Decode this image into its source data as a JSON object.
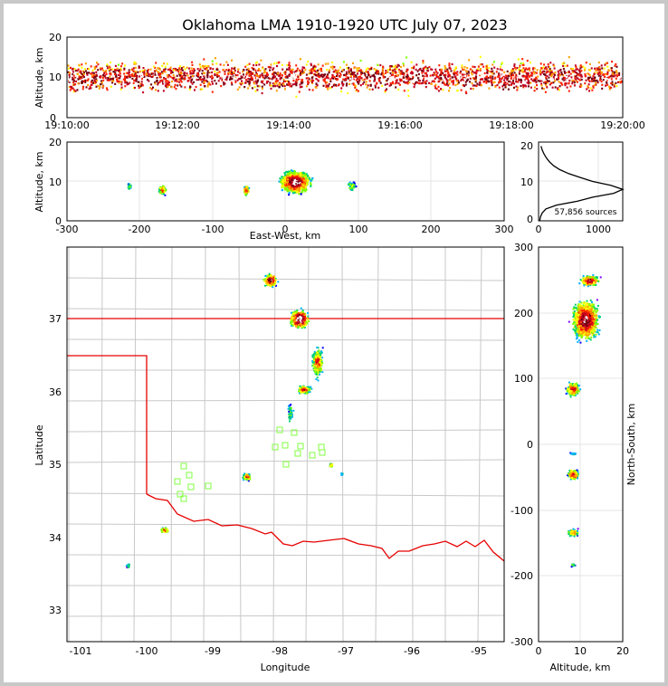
{
  "colors": {
    "state_border": "#e60000",
    "county_border": "#c8c8c8",
    "station_marker": "#80ff40",
    "density_scale": [
      "#7a00ff",
      "#0000ff",
      "#00b0ff",
      "#00d070",
      "#80ff00",
      "#ffff00",
      "#ffa000",
      "#ff2000",
      "#c00020",
      "#700010",
      "#ffffff"
    ]
  },
  "chart_data": [
    {
      "panel": "time-height",
      "type": "heatmap",
      "title": "Oklahoma LMA 1910-1920 UTC July 07, 2023",
      "ylabel": "Altitude, km",
      "ylim": [
        0,
        20
      ],
      "yticks": [
        "0",
        "10",
        "20"
      ],
      "xticks": [
        "19:10:00",
        "19:12:00",
        "19:14:00",
        "19:16:00",
        "19:18:00",
        "19:20:00"
      ]
    },
    {
      "panel": "ew-height",
      "type": "heatmap",
      "xlabel": "East-West, km",
      "ylabel": "Altitude, km",
      "xlim": [
        -300,
        300
      ],
      "ylim": [
        0,
        20
      ],
      "xticks": [
        "-300",
        "-200",
        "-100",
        "0",
        "100",
        "200",
        "300"
      ],
      "yticks": [
        "0",
        "10",
        "20"
      ]
    },
    {
      "panel": "altitude-histogram",
      "type": "line",
      "ylim": [
        0,
        20
      ],
      "xlim": [
        0,
        1400
      ],
      "xticks": [
        "0",
        "1000"
      ],
      "yticks": [
        "0",
        "10",
        "20"
      ],
      "annotation": "57,856 sources",
      "x": [
        20,
        30,
        60,
        120,
        300,
        650,
        900,
        1250,
        1400,
        1200,
        900,
        700,
        500,
        350,
        250,
        180,
        130,
        90,
        60,
        40
      ],
      "y": [
        0,
        1,
        2,
        3,
        4,
        5,
        6,
        7,
        8,
        9,
        10,
        11,
        12,
        13,
        14,
        15,
        16,
        17,
        18,
        19
      ]
    },
    {
      "panel": "plan-view",
      "type": "heatmap",
      "xlabel": "Longitude",
      "ylabel": "Latitude",
      "xlim": [
        -101.25,
        -94.65
      ],
      "ylim": [
        32.55,
        38.0
      ],
      "xticks": [
        "-101",
        "-100",
        "-99",
        "-98",
        "-97",
        "-96",
        "-95"
      ],
      "yticks": [
        "33",
        "34",
        "35",
        "36",
        "37"
      ]
    },
    {
      "panel": "ns-height",
      "type": "heatmap",
      "xlabel": "Altitude, km",
      "ylabel": "North-South, km",
      "xlim": [
        0,
        20
      ],
      "ylim": [
        -300,
        300
      ],
      "xticks": [
        "0",
        "10",
        "20"
      ],
      "yticks": [
        "-300",
        "-200",
        "-100",
        "0",
        "100",
        "200",
        "300"
      ]
    }
  ]
}
